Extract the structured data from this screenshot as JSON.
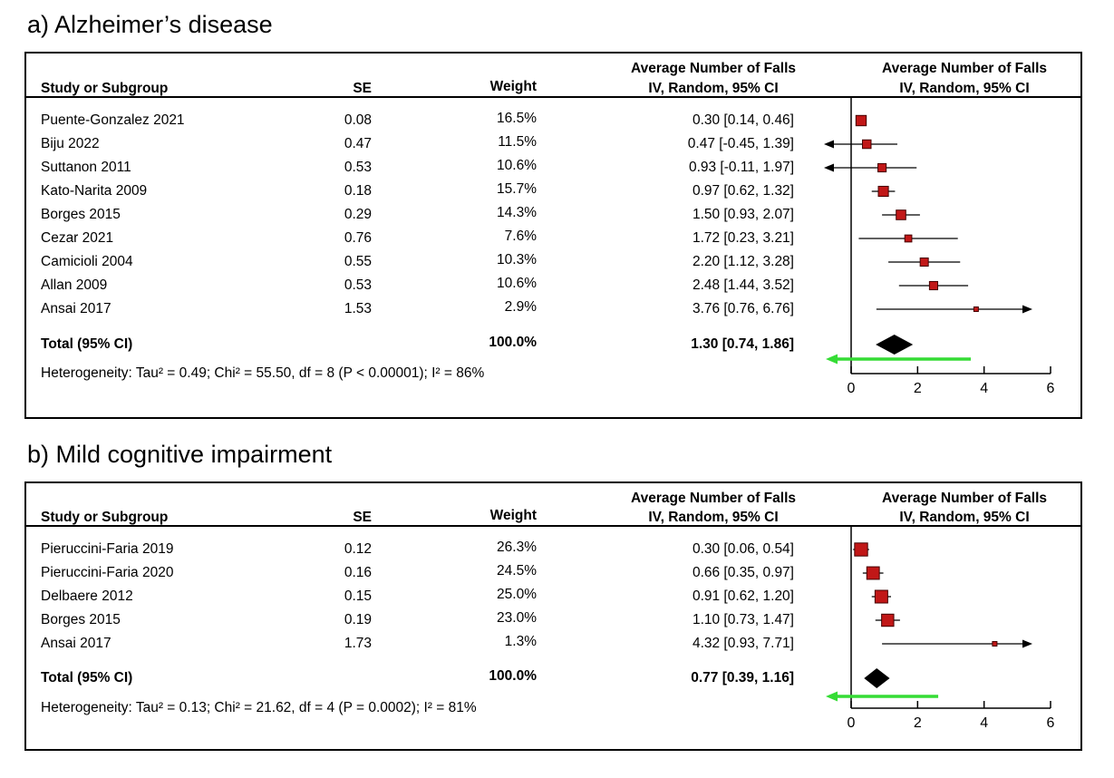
{
  "figure": {
    "panel_a_title": "a) Alzheimer’s disease",
    "panel_b_title": "b) Mild cognitive impairment"
  },
  "colors": {
    "square_fill": "#c11717",
    "square_stroke": "#440000",
    "diamond": "#000000",
    "green_arrow": "#35dc35",
    "line": "#000000"
  },
  "chart_data": [
    {
      "type": "forest",
      "panel_label": "a) Alzheimer’s disease",
      "effect_header": "Average Number of Falls",
      "model_header": "IV, Random, 95% CI",
      "columns": {
        "study": "Study or Subgroup",
        "se": "SE",
        "weight": "Weight"
      },
      "studies": [
        {
          "study": "Puente-Gonzalez 2021",
          "se": "0.08",
          "weight": "16.5%",
          "weight_value": 16.5,
          "est": 0.3,
          "lo": 0.14,
          "hi": 0.46,
          "label": "0.30 [0.14, 0.46]"
        },
        {
          "study": "Biju 2022",
          "se": "0.47",
          "weight": "11.5%",
          "weight_value": 11.5,
          "est": 0.47,
          "lo": -0.45,
          "hi": 1.39,
          "label": "0.47 [-0.45, 1.39]"
        },
        {
          "study": "Suttanon 2011",
          "se": "0.53",
          "weight": "10.6%",
          "weight_value": 10.6,
          "est": 0.93,
          "lo": -0.11,
          "hi": 1.97,
          "label": "0.93 [-0.11, 1.97]"
        },
        {
          "study": "Kato-Narita 2009",
          "se": "0.18",
          "weight": "15.7%",
          "weight_value": 15.7,
          "est": 0.97,
          "lo": 0.62,
          "hi": 1.32,
          "label": "0.97 [0.62, 1.32]"
        },
        {
          "study": "Borges 2015",
          "se": "0.29",
          "weight": "14.3%",
          "weight_value": 14.3,
          "est": 1.5,
          "lo": 0.93,
          "hi": 2.07,
          "label": "1.50 [0.93, 2.07]"
        },
        {
          "study": "Cezar 2021",
          "se": "0.76",
          "weight": "7.6%",
          "weight_value": 7.6,
          "est": 1.72,
          "lo": 0.23,
          "hi": 3.21,
          "label": "1.72 [0.23, 3.21]"
        },
        {
          "study": "Camicioli 2004",
          "se": "0.55",
          "weight": "10.3%",
          "weight_value": 10.3,
          "est": 2.2,
          "lo": 1.12,
          "hi": 3.28,
          "label": "2.20 [1.12, 3.28]"
        },
        {
          "study": "Allan 2009",
          "se": "0.53",
          "weight": "10.6%",
          "weight_value": 10.6,
          "est": 2.48,
          "lo": 1.44,
          "hi": 3.52,
          "label": "2.48 [1.44, 3.52]"
        },
        {
          "study": "Ansai 2017",
          "se": "1.53",
          "weight": "2.9%",
          "weight_value": 2.9,
          "est": 3.76,
          "lo": 0.76,
          "hi": 6.76,
          "label": "3.76 [0.76, 6.76]"
        }
      ],
      "total": {
        "study": "Total (95% CI)",
        "weight": "100.0%",
        "est": 1.3,
        "lo": 0.74,
        "hi": 1.86,
        "label": "1.30 [0.74, 1.86]"
      },
      "heterogeneity": "Heterogeneity: Tau² = 0.49; Chi² = 55.50, df = 8 (P < 0.00001); I² = 86%",
      "axis": {
        "min": 0,
        "max": 6,
        "ticks": [
          0,
          2,
          4,
          6
        ]
      },
      "green_arrow": {
        "from": 3.6,
        "to": 0,
        "direction": "left"
      }
    },
    {
      "type": "forest",
      "panel_label": "b) Mild cognitive impairment",
      "effect_header": "Average Number of Falls",
      "model_header": "IV, Random, 95% CI",
      "columns": {
        "study": "Study or Subgroup",
        "se": "SE",
        "weight": "Weight"
      },
      "studies": [
        {
          "study": "Pieruccini-Faria 2019",
          "se": "0.12",
          "weight": "26.3%",
          "weight_value": 26.3,
          "est": 0.3,
          "lo": 0.06,
          "hi": 0.54,
          "label": "0.30 [0.06, 0.54]"
        },
        {
          "study": "Pieruccini-Faria 2020",
          "se": "0.16",
          "weight": "24.5%",
          "weight_value": 24.5,
          "est": 0.66,
          "lo": 0.35,
          "hi": 0.97,
          "label": "0.66 [0.35, 0.97]"
        },
        {
          "study": "Delbaere 2012",
          "se": "0.15",
          "weight": "25.0%",
          "weight_value": 25.0,
          "est": 0.91,
          "lo": 0.62,
          "hi": 1.2,
          "label": "0.91 [0.62, 1.20]"
        },
        {
          "study": "Borges 2015",
          "se": "0.19",
          "weight": "23.0%",
          "weight_value": 23.0,
          "est": 1.1,
          "lo": 0.73,
          "hi": 1.47,
          "label": "1.10 [0.73, 1.47]"
        },
        {
          "study": "Ansai 2017",
          "se": "1.73",
          "weight": "1.3%",
          "weight_value": 1.3,
          "est": 4.32,
          "lo": 0.93,
          "hi": 7.71,
          "label": "4.32 [0.93, 7.71]"
        }
      ],
      "total": {
        "study": "Total (95% CI)",
        "weight": "100.0%",
        "est": 0.77,
        "lo": 0.39,
        "hi": 1.16,
        "label": "0.77 [0.39, 1.16]"
      },
      "heterogeneity": "Heterogeneity: Tau² = 0.13; Chi² = 21.62, df = 4 (P = 0.0002); I² = 81%",
      "axis": {
        "min": 0,
        "max": 6,
        "ticks": [
          0,
          2,
          4,
          6
        ]
      },
      "green_arrow": {
        "from": 2.62,
        "to": 0,
        "direction": "left"
      }
    }
  ]
}
